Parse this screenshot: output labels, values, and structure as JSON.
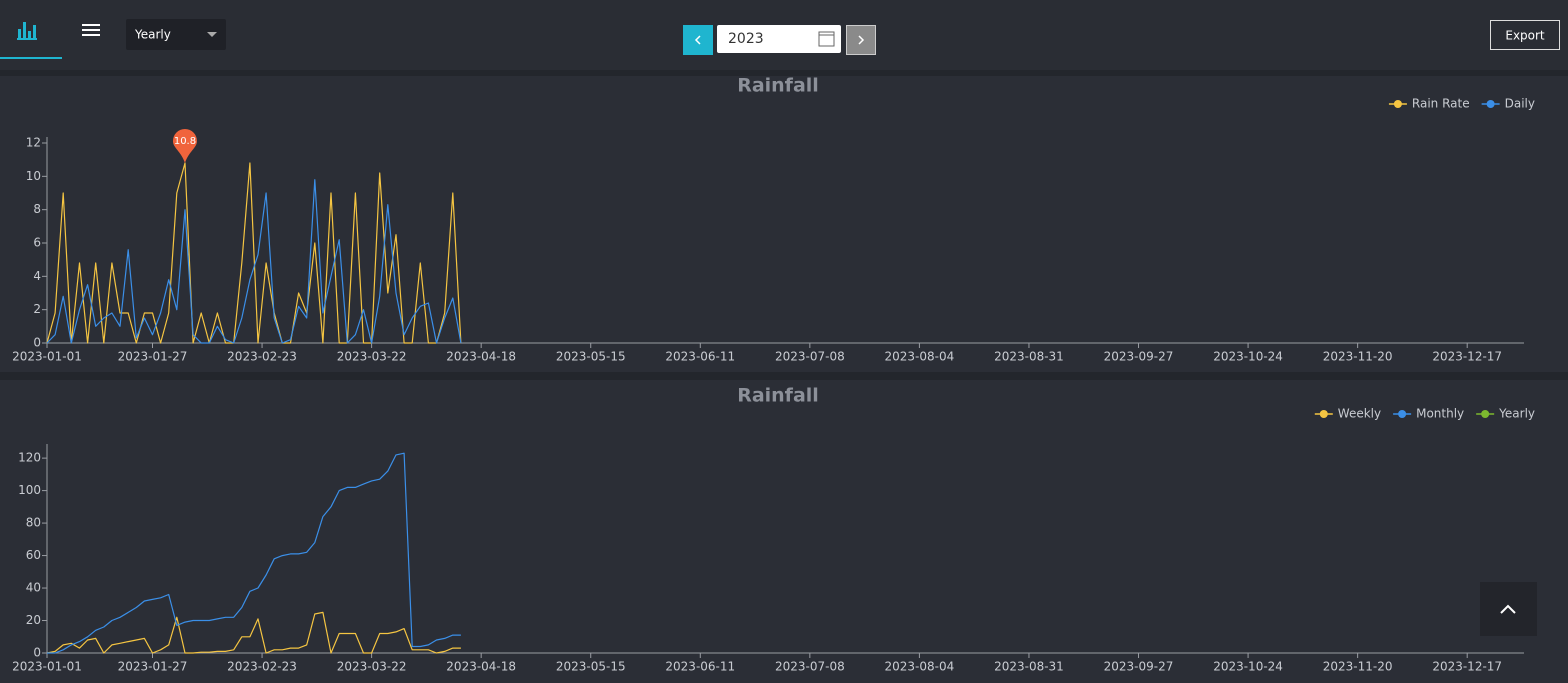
{
  "toolbar": {
    "period": "Yearly",
    "year": "2023",
    "export": "Export"
  },
  "chart_data": [
    {
      "type": "line",
      "title": "Rainfall",
      "legend": "top-right",
      "grid": false,
      "x": [
        "2023-01-01",
        "2023-01-03",
        "2023-01-05",
        "2023-01-07",
        "2023-01-09",
        "2023-01-11",
        "2023-01-13",
        "2023-01-15",
        "2023-01-17",
        "2023-01-19",
        "2023-01-21",
        "2023-01-23",
        "2023-01-25",
        "2023-01-27",
        "2023-01-29",
        "2023-01-31",
        "2023-02-02",
        "2023-02-04",
        "2023-02-06",
        "2023-02-08",
        "2023-02-10",
        "2023-02-12",
        "2023-02-14",
        "2023-02-16",
        "2023-02-18",
        "2023-02-20",
        "2023-02-22",
        "2023-02-24",
        "2023-02-26",
        "2023-02-28",
        "2023-03-02",
        "2023-03-04",
        "2023-03-06",
        "2023-03-08",
        "2023-03-10",
        "2023-03-12",
        "2023-03-14",
        "2023-03-16",
        "2023-03-18",
        "2023-03-20",
        "2023-03-22",
        "2023-03-24",
        "2023-03-26",
        "2023-03-28",
        "2023-03-30",
        "2023-04-01",
        "2023-04-03",
        "2023-04-05",
        "2023-04-07",
        "2023-04-09",
        "2023-04-11",
        "2023-04-13"
      ],
      "series": [
        {
          "name": "Rain Rate",
          "color": "#f5c542",
          "values": [
            0,
            1.8,
            9,
            0,
            4.8,
            0,
            4.8,
            0,
            4.8,
            1.8,
            1.8,
            0,
            1.8,
            1.8,
            0,
            1.8,
            9,
            10.8,
            0,
            1.8,
            0,
            1.8,
            0,
            0,
            4.8,
            10.8,
            0,
            4.8,
            1.8,
            0,
            0,
            3,
            1.8,
            6,
            0,
            9,
            0,
            0,
            9,
            0,
            0,
            10.2,
            3,
            6.5,
            0,
            0,
            4.8,
            0,
            0,
            1.8,
            9,
            0
          ]
        },
        {
          "name": "Daily",
          "color": "#3b8fe8",
          "values": [
            0,
            0.5,
            2.8,
            0,
            2,
            3.5,
            1,
            1.5,
            1.8,
            1,
            5.6,
            0.3,
            1.5,
            0.5,
            1.8,
            3.8,
            2,
            8,
            0.5,
            0,
            0,
            1,
            0.2,
            0,
            1.5,
            3.8,
            5.3,
            9,
            1.5,
            0,
            0.2,
            2.2,
            1.5,
            9.8,
            1.8,
            4,
            6.2,
            0,
            0.5,
            2,
            0,
            2.8,
            8.3,
            3,
            0.5,
            1.5,
            2.2,
            2.4,
            0,
            1.5,
            2.7,
            0
          ]
        }
      ],
      "mark_point": {
        "x": "2023-02-04",
        "value": 10.8
      },
      "xlim": [
        "2023-01-01",
        "2023-12-31"
      ],
      "xticks": [
        "2023-01-01",
        "2023-01-27",
        "2023-02-23",
        "2023-03-22",
        "2023-04-18",
        "2023-05-15",
        "2023-06-11",
        "2023-07-08",
        "2023-08-04",
        "2023-08-31",
        "2023-09-27",
        "2023-10-24",
        "2023-11-20",
        "2023-12-17"
      ],
      "ylim": [
        0,
        12
      ],
      "yticks": [
        0,
        2,
        4,
        6,
        8,
        10,
        12
      ]
    },
    {
      "type": "line",
      "title": "Rainfall",
      "legend": "top-right",
      "grid": false,
      "x": [
        "2023-01-01",
        "2023-01-03",
        "2023-01-05",
        "2023-01-07",
        "2023-01-09",
        "2023-01-11",
        "2023-01-13",
        "2023-01-15",
        "2023-01-17",
        "2023-01-19",
        "2023-01-21",
        "2023-01-23",
        "2023-01-25",
        "2023-01-27",
        "2023-01-29",
        "2023-01-31",
        "2023-02-02",
        "2023-02-04",
        "2023-02-06",
        "2023-02-08",
        "2023-02-10",
        "2023-02-12",
        "2023-02-14",
        "2023-02-16",
        "2023-02-18",
        "2023-02-20",
        "2023-02-22",
        "2023-02-24",
        "2023-02-26",
        "2023-02-28",
        "2023-03-02",
        "2023-03-04",
        "2023-03-06",
        "2023-03-08",
        "2023-03-10",
        "2023-03-12",
        "2023-03-14",
        "2023-03-16",
        "2023-03-18",
        "2023-03-20",
        "2023-03-22",
        "2023-03-24",
        "2023-03-26",
        "2023-03-28",
        "2023-03-30",
        "2023-04-01",
        "2023-04-03",
        "2023-04-05",
        "2023-04-07",
        "2023-04-09",
        "2023-04-11",
        "2023-04-13"
      ],
      "series": [
        {
          "name": "Weekly",
          "color": "#f5c542",
          "values": [
            0,
            1,
            5,
            6,
            3,
            8,
            9,
            0,
            5,
            6,
            7,
            8,
            9,
            0,
            2,
            5,
            22,
            0,
            0,
            0.5,
            0.5,
            1,
            1,
            2,
            10,
            10,
            21,
            0,
            2,
            2,
            3,
            3,
            5,
            24,
            25,
            0,
            12,
            12,
            12,
            0,
            0,
            12,
            12,
            13,
            15,
            2,
            2,
            2,
            0,
            1,
            3,
            3
          ]
        },
        {
          "name": "Monthly",
          "color": "#3b8fe8",
          "values": [
            0,
            0,
            2,
            5,
            7,
            10,
            14,
            16,
            20,
            22,
            25,
            28,
            32,
            33,
            34,
            36,
            17,
            19,
            20,
            20,
            20,
            21,
            22,
            22,
            28,
            38,
            40,
            48,
            58,
            60,
            61,
            61,
            62,
            68,
            84,
            90,
            100,
            102,
            102,
            104,
            106,
            107,
            112,
            122,
            123,
            4,
            4,
            5,
            8,
            9,
            11,
            11
          ]
        },
        {
          "name": "Yearly",
          "color": "#7cb82f",
          "values": [
            null,
            null,
            null,
            null,
            null,
            null,
            null,
            null,
            null,
            null,
            null,
            null,
            null,
            null,
            null,
            null,
            null,
            null,
            null,
            null,
            null,
            null,
            null,
            null,
            null,
            null,
            null,
            null,
            null,
            null,
            null,
            null,
            null,
            null,
            null,
            null,
            null,
            null,
            null,
            null,
            null,
            null,
            null,
            null,
            null,
            null,
            null,
            null,
            null,
            null,
            null,
            null
          ]
        }
      ],
      "xlim": [
        "2023-01-01",
        "2023-12-31"
      ],
      "xticks": [
        "2023-01-01",
        "2023-01-27",
        "2023-02-23",
        "2023-03-22",
        "2023-04-18",
        "2023-05-15",
        "2023-06-11",
        "2023-07-08",
        "2023-08-04",
        "2023-08-31",
        "2023-09-27",
        "2023-10-24",
        "2023-11-20",
        "2023-12-17"
      ],
      "ylim": [
        0,
        125
      ],
      "yticks": [
        0,
        20,
        40,
        60,
        80,
        100,
        120
      ]
    }
  ]
}
